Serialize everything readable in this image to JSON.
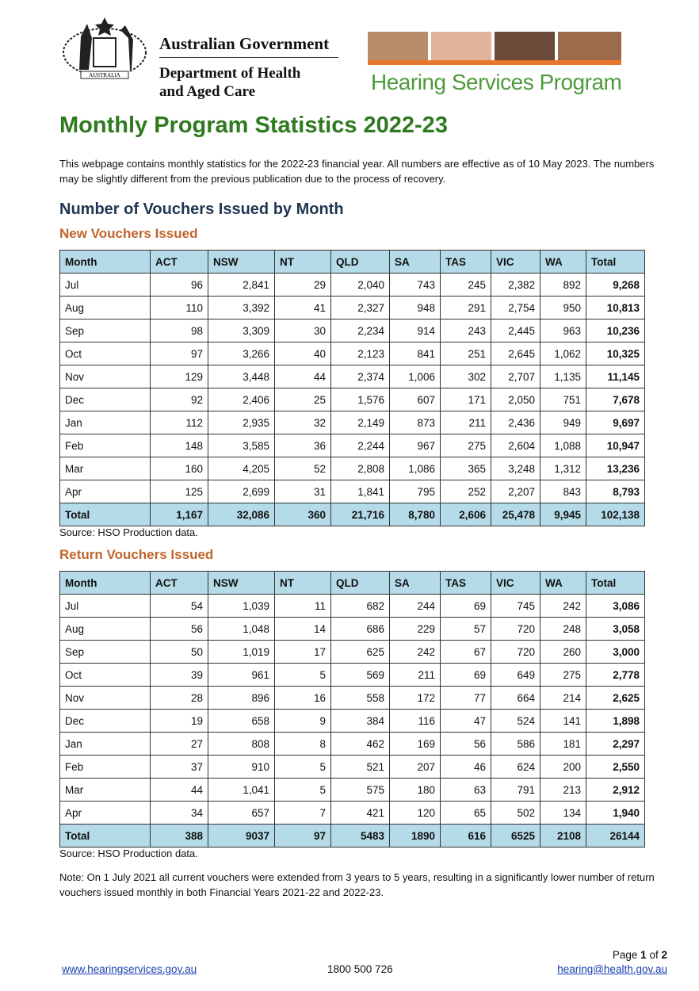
{
  "header": {
    "gov": "Australian Government",
    "dept1": "Department of Health",
    "dept2": "and Aged Care",
    "arms": "AUSTRALIA",
    "program": "Hearing Services Program"
  },
  "title": "Monthly Program Statistics 2022-23",
  "intro": "This webpage contains monthly statistics for the 2022-23 financial year. All numbers are effective as of 10 May 2023. The numbers may be slightly different from the previous publication due to the process of recovery.",
  "section": "Number of Vouchers Issued by Month",
  "tables": [
    {
      "title": "New Vouchers Issued",
      "columns": [
        "Month",
        "ACT",
        "NSW",
        "NT",
        "QLD",
        "SA",
        "TAS",
        "VIC",
        "WA",
        "Total"
      ],
      "rows": [
        [
          "Jul",
          "96",
          "2,841",
          "29",
          "2,040",
          "743",
          "245",
          "2,382",
          "892",
          "9,268"
        ],
        [
          "Aug",
          "110",
          "3,392",
          "41",
          "2,327",
          "948",
          "291",
          "2,754",
          "950",
          "10,813"
        ],
        [
          "Sep",
          "98",
          "3,309",
          "30",
          "2,234",
          "914",
          "243",
          "2,445",
          "963",
          "10,236"
        ],
        [
          "Oct",
          "97",
          "3,266",
          "40",
          "2,123",
          "841",
          "251",
          "2,645",
          "1,062",
          "10,325"
        ],
        [
          "Nov",
          "129",
          "3,448",
          "44",
          "2,374",
          "1,006",
          "302",
          "2,707",
          "1,135",
          "11,145"
        ],
        [
          "Dec",
          "92",
          "2,406",
          "25",
          "1,576",
          "607",
          "171",
          "2,050",
          "751",
          "7,678"
        ],
        [
          "Jan",
          "112",
          "2,935",
          "32",
          "2,149",
          "873",
          "211",
          "2,436",
          "949",
          "9,697"
        ],
        [
          "Feb",
          "148",
          "3,585",
          "36",
          "2,244",
          "967",
          "275",
          "2,604",
          "1,088",
          "10,947"
        ],
        [
          "Mar",
          "160",
          "4,205",
          "52",
          "2,808",
          "1,086",
          "365",
          "3,248",
          "1,312",
          "13,236"
        ],
        [
          "Apr",
          "125",
          "2,699",
          "31",
          "1,841",
          "795",
          "252",
          "2,207",
          "843",
          "8,793"
        ]
      ],
      "total": [
        "Total",
        "1,167",
        "32,086",
        "360",
        "21,716",
        "8,780",
        "2,606",
        "25,478",
        "9,945",
        "102,138"
      ],
      "source": "Source: HSO Production data."
    },
    {
      "title": "Return Vouchers Issued",
      "columns": [
        "Month",
        "ACT",
        "NSW",
        "NT",
        "QLD",
        "SA",
        "TAS",
        "VIC",
        "WA",
        "Total"
      ],
      "rows": [
        [
          "Jul",
          "54",
          "1,039",
          "11",
          "682",
          "244",
          "69",
          "745",
          "242",
          "3,086"
        ],
        [
          "Aug",
          "56",
          "1,048",
          "14",
          "686",
          "229",
          "57",
          "720",
          "248",
          "3,058"
        ],
        [
          "Sep",
          "50",
          "1,019",
          "17",
          "625",
          "242",
          "67",
          "720",
          "260",
          "3,000"
        ],
        [
          "Oct",
          "39",
          "961",
          "5",
          "569",
          "211",
          "69",
          "649",
          "275",
          "2,778"
        ],
        [
          "Nov",
          "28",
          "896",
          "16",
          "558",
          "172",
          "77",
          "664",
          "214",
          "2,625"
        ],
        [
          "Dec",
          "19",
          "658",
          "9",
          "384",
          "116",
          "47",
          "524",
          "141",
          "1,898"
        ],
        [
          "Jan",
          "27",
          "808",
          "8",
          "462",
          "169",
          "56",
          "586",
          "181",
          "2,297"
        ],
        [
          "Feb",
          "37",
          "910",
          "5",
          "521",
          "207",
          "46",
          "624",
          "200",
          "2,550"
        ],
        [
          "Mar",
          "44",
          "1,041",
          "5",
          "575",
          "180",
          "63",
          "791",
          "213",
          "2,912"
        ],
        [
          "Apr",
          "34",
          "657",
          "7",
          "421",
          "120",
          "65",
          "502",
          "134",
          "1,940"
        ]
      ],
      "total": [
        "Total",
        "388",
        "9037",
        "97",
        "5483",
        "1890",
        "616",
        "6525",
        "2108",
        "26144"
      ],
      "source": "Source: HSO Production data."
    }
  ],
  "note": "Note: On 1 July 2021 all current vouchers were extended from 3 years to 5 years, resulting in a significantly lower number of return vouchers issued monthly in both Financial Years 2021-22 and 2022-23.",
  "footer": {
    "page": "Page",
    "page_num": "1",
    "of": "of",
    "page_total": "2",
    "website": "www.hearingservices.gov.au",
    "phone": "1800 500 726",
    "email": "hearing@health.gov.au"
  }
}
